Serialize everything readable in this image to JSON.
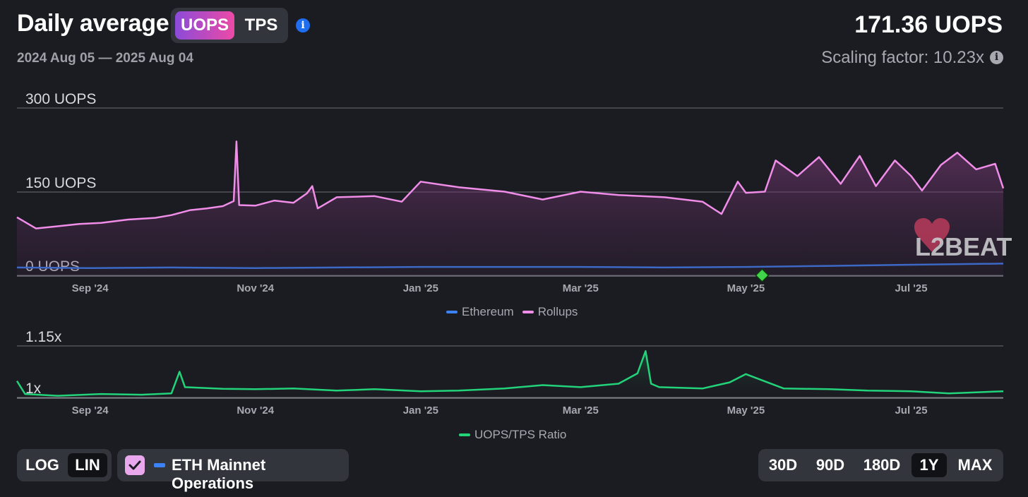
{
  "header": {
    "title": "Daily average",
    "metric_options": [
      "UOPS",
      "TPS"
    ],
    "active_metric": "UOPS",
    "info_icon": "info-icon",
    "date_range": "2024 Aug 05 — 2025 Aug 04",
    "headline_value": "171.36 UOPS",
    "scaling_factor": "Scaling factor: 10.23x",
    "watermark": "L2BEAT"
  },
  "chart_data": [
    {
      "type": "area",
      "y_ticks": [
        "300 UOPS",
        "150 UOPS",
        "0 UOPS"
      ],
      "ylim": [
        0,
        300
      ],
      "x_ticks": [
        "Sep '24",
        "Nov '24",
        "Jan '25",
        "Mar '25",
        "May '25",
        "Jul '25"
      ],
      "x_tick_dates": [
        "2024-09-01",
        "2024-11-01",
        "2025-01-01",
        "2025-03-01",
        "2025-05-01",
        "2025-07-01"
      ],
      "x_range": [
        "2024-08-05",
        "2025-08-04"
      ],
      "series": [
        {
          "name": "Ethereum",
          "color": "#3b82f6",
          "points": [
            [
              "2024-08-05",
              14
            ],
            [
              "2024-09-01",
              13
            ],
            [
              "2024-10-01",
              14
            ],
            [
              "2024-11-01",
              13
            ],
            [
              "2024-12-01",
              14
            ],
            [
              "2025-01-01",
              15
            ],
            [
              "2025-02-01",
              15
            ],
            [
              "2025-03-01",
              15
            ],
            [
              "2025-04-01",
              14
            ],
            [
              "2025-05-01",
              15
            ],
            [
              "2025-06-01",
              17
            ],
            [
              "2025-07-01",
              19
            ],
            [
              "2025-08-04",
              21
            ]
          ]
        },
        {
          "name": "Rollups",
          "color": "#f08de8",
          "points": [
            [
              "2024-08-05",
              104
            ],
            [
              "2024-08-12",
              84
            ],
            [
              "2024-08-20",
              88
            ],
            [
              "2024-08-28",
              92
            ],
            [
              "2024-09-05",
              94
            ],
            [
              "2024-09-15",
              100
            ],
            [
              "2024-09-25",
              103
            ],
            [
              "2024-10-01",
              108
            ],
            [
              "2024-10-08",
              117
            ],
            [
              "2024-10-14",
              120
            ],
            [
              "2024-10-20",
              124
            ],
            [
              "2024-10-24",
              133
            ],
            [
              "2024-10-25",
              240
            ],
            [
              "2024-10-26",
              126
            ],
            [
              "2024-11-01",
              125
            ],
            [
              "2024-11-08",
              134
            ],
            [
              "2024-11-15",
              130
            ],
            [
              "2024-11-20",
              147
            ],
            [
              "2024-11-22",
              160
            ],
            [
              "2024-11-24",
              120
            ],
            [
              "2024-12-01",
              140
            ],
            [
              "2024-12-15",
              142
            ],
            [
              "2024-12-25",
              132
            ],
            [
              "2025-01-01",
              168
            ],
            [
              "2025-01-15",
              158
            ],
            [
              "2025-02-01",
              150
            ],
            [
              "2025-02-15",
              136
            ],
            [
              "2025-03-01",
              150
            ],
            [
              "2025-03-15",
              144
            ],
            [
              "2025-04-01",
              140
            ],
            [
              "2025-04-15",
              132
            ],
            [
              "2025-04-22",
              110
            ],
            [
              "2025-04-28",
              168
            ],
            [
              "2025-05-01",
              148
            ],
            [
              "2025-05-08",
              150
            ],
            [
              "2025-05-12",
              206
            ],
            [
              "2025-05-20",
              178
            ],
            [
              "2025-05-28",
              212
            ],
            [
              "2025-06-05",
              164
            ],
            [
              "2025-06-12",
              214
            ],
            [
              "2025-06-18",
              160
            ],
            [
              "2025-06-25",
              206
            ],
            [
              "2025-07-01",
              178
            ],
            [
              "2025-07-05",
              152
            ],
            [
              "2025-07-12",
              198
            ],
            [
              "2025-07-18",
              220
            ],
            [
              "2025-07-25",
              190
            ],
            [
              "2025-08-01",
              200
            ],
            [
              "2025-08-04",
              156
            ]
          ]
        }
      ],
      "marker": {
        "date": "2025-05-07",
        "value": 0,
        "shape": "diamond",
        "color": "#3fd44a"
      },
      "legend_position": "bottom-center"
    },
    {
      "type": "area",
      "y_ticks": [
        "1.15x",
        "1x"
      ],
      "ylim": [
        1.0,
        1.15
      ],
      "x_ticks": [
        "Sep '24",
        "Nov '24",
        "Jan '25",
        "Mar '25",
        "May '25",
        "Jul '25"
      ],
      "x_tick_dates": [
        "2024-09-01",
        "2024-11-01",
        "2025-01-01",
        "2025-03-01",
        "2025-05-01",
        "2025-07-01"
      ],
      "x_range": [
        "2024-08-05",
        "2025-08-04"
      ],
      "series": [
        {
          "name": "UOPS/TPS Ratio",
          "color": "#22d37a",
          "points": [
            [
              "2024-08-05",
              1.048
            ],
            [
              "2024-08-08",
              1.01
            ],
            [
              "2024-08-20",
              1.005
            ],
            [
              "2024-09-05",
              1.01
            ],
            [
              "2024-09-20",
              1.008
            ],
            [
              "2024-10-01",
              1.012
            ],
            [
              "2024-10-04",
              1.075
            ],
            [
              "2024-10-06",
              1.03
            ],
            [
              "2024-10-20",
              1.025
            ],
            [
              "2024-11-01",
              1.024
            ],
            [
              "2024-11-15",
              1.026
            ],
            [
              "2024-12-01",
              1.02
            ],
            [
              "2024-12-15",
              1.024
            ],
            [
              "2025-01-01",
              1.018
            ],
            [
              "2025-01-15",
              1.02
            ],
            [
              "2025-02-01",
              1.026
            ],
            [
              "2025-02-15",
              1.036
            ],
            [
              "2025-03-01",
              1.03
            ],
            [
              "2025-03-15",
              1.04
            ],
            [
              "2025-03-22",
              1.07
            ],
            [
              "2025-03-25",
              1.135
            ],
            [
              "2025-03-27",
              1.04
            ],
            [
              "2025-03-30",
              1.03
            ],
            [
              "2025-04-15",
              1.026
            ],
            [
              "2025-04-25",
              1.044
            ],
            [
              "2025-05-01",
              1.068
            ],
            [
              "2025-05-07",
              1.05
            ],
            [
              "2025-05-15",
              1.026
            ],
            [
              "2025-06-01",
              1.024
            ],
            [
              "2025-06-15",
              1.02
            ],
            [
              "2025-07-01",
              1.018
            ],
            [
              "2025-07-15",
              1.012
            ],
            [
              "2025-08-04",
              1.018
            ]
          ]
        }
      ],
      "legend_position": "bottom-center"
    }
  ],
  "controls": {
    "scale_options": [
      "LOG",
      "LIN"
    ],
    "active_scale": "LIN",
    "eth_mainnet_label": "ETH Mainnet Operations",
    "eth_mainnet_checked": true,
    "range_options": [
      "30D",
      "90D",
      "180D",
      "1Y",
      "MAX"
    ],
    "active_range": "1Y",
    "checkbox_icon": "check-icon"
  }
}
